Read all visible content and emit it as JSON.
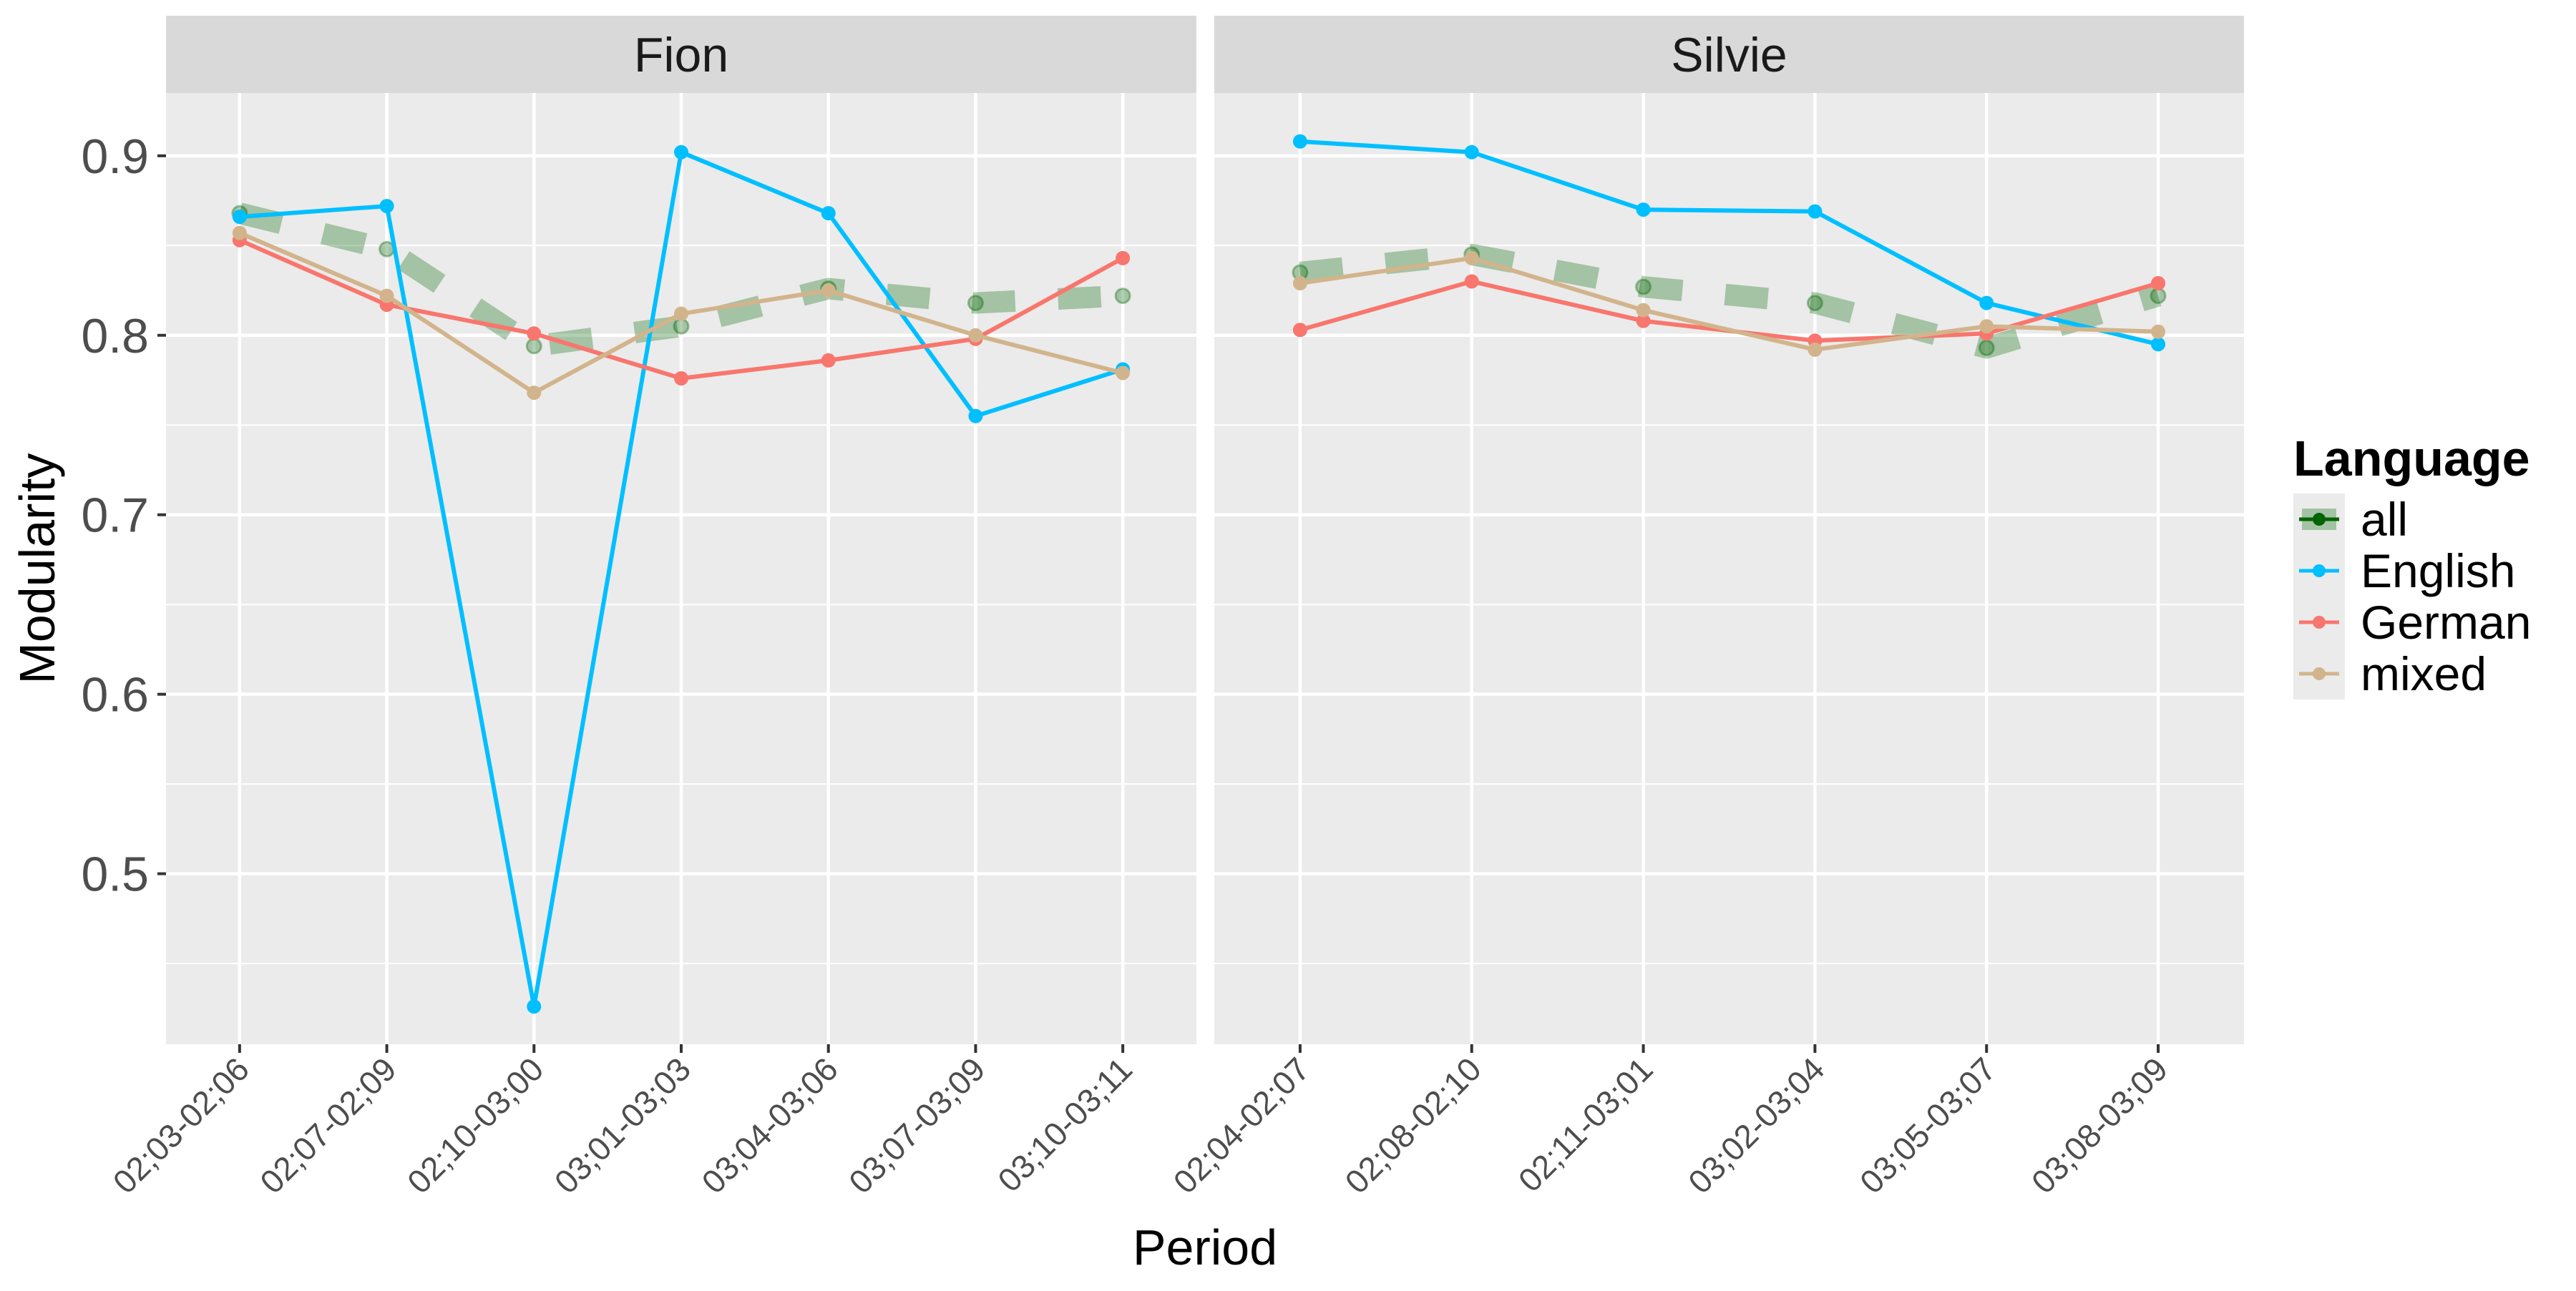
{
  "chart_data": {
    "type": "line",
    "ylabel": "Modularity",
    "xlabel": "Period",
    "ylim": [
      0.405,
      0.935
    ],
    "yticks": [
      0.5,
      0.6,
      0.7,
      0.8,
      0.9
    ],
    "ytick_labels": [
      "0.5",
      "0.6",
      "0.7",
      "0.8",
      "0.9"
    ],
    "grid": true,
    "legend": {
      "title": "Language",
      "placement": "right",
      "entries": [
        {
          "name": "all",
          "color": "#006400",
          "style": "dashed-point"
        },
        {
          "name": "English",
          "color": "#00BFFF",
          "style": "line-point"
        },
        {
          "name": "German",
          "color": "#F8766D",
          "style": "line-point"
        },
        {
          "name": "mixed",
          "color": "#D2B48C",
          "style": "line-point"
        }
      ]
    },
    "panels": [
      {
        "strip": "Fion",
        "categories": [
          "02;03-02;06",
          "02;07-02;09",
          "02;10-03;00",
          "03;01-03;03",
          "03;04-03;06",
          "03;07-03;09",
          "03;10-03;11"
        ],
        "series": [
          {
            "name": "all",
            "values": [
              0.868,
              0.848,
              0.794,
              0.805,
              0.826,
              0.818,
              0.822
            ]
          },
          {
            "name": "English",
            "values": [
              0.866,
              0.872,
              0.426,
              0.902,
              0.868,
              0.755,
              0.781
            ]
          },
          {
            "name": "German",
            "values": [
              0.853,
              0.817,
              0.801,
              0.776,
              0.786,
              0.798,
              0.843
            ]
          },
          {
            "name": "mixed",
            "values": [
              0.857,
              0.822,
              0.768,
              0.812,
              0.825,
              0.8,
              0.779
            ]
          }
        ]
      },
      {
        "strip": "Silvie",
        "categories": [
          "02;04-02;07",
          "02;08-02;10",
          "02;11-03;01",
          "03;02-03;04",
          "03;05-03;07",
          "03;08-03;09"
        ],
        "series": [
          {
            "name": "all",
            "values": [
              0.835,
              0.845,
              0.827,
              0.818,
              0.793,
              0.822
            ]
          },
          {
            "name": "English",
            "values": [
              0.908,
              0.902,
              0.87,
              0.869,
              0.818,
              0.795
            ]
          },
          {
            "name": "German",
            "values": [
              0.803,
              0.83,
              0.808,
              0.797,
              0.801,
              0.829
            ]
          },
          {
            "name": "mixed",
            "values": [
              0.829,
              0.843,
              0.814,
              0.792,
              0.805,
              0.802
            ]
          }
        ]
      }
    ]
  }
}
